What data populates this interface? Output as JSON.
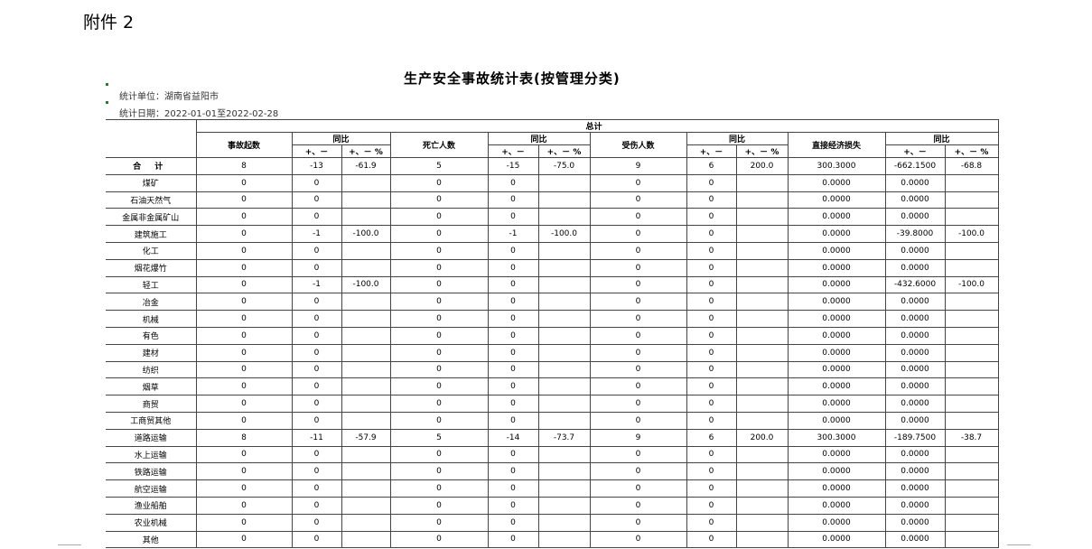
{
  "attachment": "附件 2",
  "title": "生产安全事故统计表(按管理分类)",
  "unit_label": "统计单位：湖南省益阳市",
  "date_label": "统计日期：2022-01-01至2022-02-28",
  "headers": {
    "total": "总计",
    "accidents": "事故起数",
    "deaths": "死亡人数",
    "injuries": "受伤人数",
    "loss": "直接经济损失",
    "yoy": "同比",
    "delta": "+、－",
    "pct": "+、－ %"
  },
  "rows": [
    [
      "合 计",
      "8",
      "-13",
      "-61.9",
      "5",
      "-15",
      "-75.0",
      "9",
      "6",
      "200.0",
      "300.3000",
      "-662.1500",
      "-68.8"
    ],
    [
      "煤矿",
      "0",
      "0",
      "",
      "0",
      "0",
      "",
      "0",
      "0",
      "",
      "0.0000",
      "0.0000",
      ""
    ],
    [
      "石油天然气",
      "0",
      "0",
      "",
      "0",
      "0",
      "",
      "0",
      "0",
      "",
      "0.0000",
      "0.0000",
      ""
    ],
    [
      "金属非金属矿山",
      "0",
      "0",
      "",
      "0",
      "0",
      "",
      "0",
      "0",
      "",
      "0.0000",
      "0.0000",
      ""
    ],
    [
      "建筑施工",
      "0",
      "-1",
      "-100.0",
      "0",
      "-1",
      "-100.0",
      "0",
      "0",
      "",
      "0.0000",
      "-39.8000",
      "-100.0"
    ],
    [
      "化工",
      "0",
      "0",
      "",
      "0",
      "0",
      "",
      "0",
      "0",
      "",
      "0.0000",
      "0.0000",
      ""
    ],
    [
      "烟花爆竹",
      "0",
      "0",
      "",
      "0",
      "0",
      "",
      "0",
      "0",
      "",
      "0.0000",
      "0.0000",
      ""
    ],
    [
      "轻工",
      "0",
      "-1",
      "-100.0",
      "0",
      "0",
      "",
      "0",
      "0",
      "",
      "0.0000",
      "-432.6000",
      "-100.0"
    ],
    [
      "冶金",
      "0",
      "0",
      "",
      "0",
      "0",
      "",
      "0",
      "0",
      "",
      "0.0000",
      "0.0000",
      ""
    ],
    [
      "机械",
      "0",
      "0",
      "",
      "0",
      "0",
      "",
      "0",
      "0",
      "",
      "0.0000",
      "0.0000",
      ""
    ],
    [
      "有色",
      "0",
      "0",
      "",
      "0",
      "0",
      "",
      "0",
      "0",
      "",
      "0.0000",
      "0.0000",
      ""
    ],
    [
      "建材",
      "0",
      "0",
      "",
      "0",
      "0",
      "",
      "0",
      "0",
      "",
      "0.0000",
      "0.0000",
      ""
    ],
    [
      "纺织",
      "0",
      "0",
      "",
      "0",
      "0",
      "",
      "0",
      "0",
      "",
      "0.0000",
      "0.0000",
      ""
    ],
    [
      "烟草",
      "0",
      "0",
      "",
      "0",
      "0",
      "",
      "0",
      "0",
      "",
      "0.0000",
      "0.0000",
      ""
    ],
    [
      "商贸",
      "0",
      "0",
      "",
      "0",
      "0",
      "",
      "0",
      "0",
      "",
      "0.0000",
      "0.0000",
      ""
    ],
    [
      "工商贸其他",
      "0",
      "0",
      "",
      "0",
      "0",
      "",
      "0",
      "0",
      "",
      "0.0000",
      "0.0000",
      ""
    ],
    [
      "道路运输",
      "8",
      "-11",
      "-57.9",
      "5",
      "-14",
      "-73.7",
      "9",
      "6",
      "200.0",
      "300.3000",
      "-189.7500",
      "-38.7"
    ],
    [
      "水上运输",
      "0",
      "0",
      "",
      "0",
      "0",
      "",
      "0",
      "0",
      "",
      "0.0000",
      "0.0000",
      ""
    ],
    [
      "铁路运输",
      "0",
      "0",
      "",
      "0",
      "0",
      "",
      "0",
      "0",
      "",
      "0.0000",
      "0.0000",
      ""
    ],
    [
      "航空运输",
      "0",
      "0",
      "",
      "0",
      "0",
      "",
      "0",
      "0",
      "",
      "0.0000",
      "0.0000",
      ""
    ],
    [
      "渔业船舶",
      "0",
      "0",
      "",
      "0",
      "0",
      "",
      "0",
      "0",
      "",
      "0.0000",
      "0.0000",
      ""
    ],
    [
      "农业机械",
      "0",
      "0",
      "",
      "0",
      "0",
      "",
      "0",
      "0",
      "",
      "0.0000",
      "0.0000",
      ""
    ],
    [
      "其他",
      "0",
      "0",
      "",
      "0",
      "0",
      "",
      "0",
      "0",
      "",
      "0.0000",
      "0.0000",
      ""
    ]
  ]
}
